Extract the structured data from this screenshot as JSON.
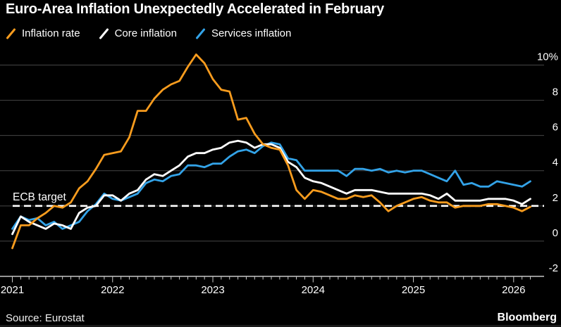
{
  "header": {
    "title": "Euro-Area Inflation Unexpectedly Accelerated in February"
  },
  "footer": {
    "source": "Source: Eurostat",
    "brand": "Bloomberg"
  },
  "chart_data": {
    "type": "line",
    "x_frequency": "monthly",
    "x_start": "2021-01",
    "x_end": "2026-03",
    "x_year_ticks": [
      "2021",
      "2022",
      "2023",
      "2024",
      "2025",
      "2026"
    ],
    "yticks": [
      10,
      8,
      6,
      4,
      2,
      0,
      -2
    ],
    "ytick_labels": [
      "10%",
      "8",
      "6",
      "4",
      "2",
      "0",
      "-2"
    ],
    "ylim": [
      -2,
      10
    ],
    "grid": true,
    "legend_position": "top-left",
    "background_color": "#000000",
    "grid_color": "#464646",
    "axis_color": "#c8c8c8",
    "text_color": "#ffffff",
    "target_line": {
      "label": "ECB target",
      "value": 2,
      "style": "dashed",
      "color": "#ffffff"
    },
    "series": [
      {
        "name": "Inflation rate",
        "color": "#F89C1E",
        "values": [
          -0.4,
          0.9,
          0.9,
          1.3,
          1.6,
          2.0,
          1.9,
          2.2,
          3.0,
          3.4,
          4.1,
          4.9,
          5.0,
          5.1,
          5.9,
          7.4,
          7.4,
          8.1,
          8.6,
          8.9,
          9.1,
          9.9,
          10.6,
          10.1,
          9.2,
          8.6,
          8.5,
          6.9,
          7.0,
          6.1,
          5.5,
          5.3,
          5.2,
          4.3,
          2.9,
          2.4,
          2.9,
          2.8,
          2.6,
          2.4,
          2.4,
          2.6,
          2.5,
          2.6,
          2.2,
          1.7,
          2.0,
          2.2,
          2.4,
          2.5,
          2.3,
          2.2,
          2.2,
          1.9,
          2.0,
          2.0,
          2.0,
          2.1,
          2.1,
          2.0,
          1.9,
          1.7,
          1.95
        ]
      },
      {
        "name": "Core inflation",
        "color": "#FFFFFF",
        "values": [
          0.4,
          1.4,
          1.1,
          0.9,
          0.7,
          1.0,
          0.9,
          0.7,
          1.6,
          1.9,
          2.0,
          2.6,
          2.6,
          2.3,
          2.7,
          2.9,
          3.5,
          3.8,
          3.7,
          4.0,
          4.3,
          4.8,
          5.0,
          5.0,
          5.2,
          5.3,
          5.6,
          5.7,
          5.6,
          5.3,
          5.5,
          5.5,
          5.3,
          4.5,
          4.2,
          3.6,
          3.4,
          3.3,
          3.1,
          2.9,
          2.7,
          2.9,
          2.9,
          2.9,
          2.8,
          2.7,
          2.7,
          2.7,
          2.7,
          2.7,
          2.6,
          2.4,
          2.7,
          2.3,
          2.3,
          2.3,
          2.3,
          2.4,
          2.4,
          2.4,
          2.3,
          2.1,
          2.4
        ]
      },
      {
        "name": "Services inflation",
        "color": "#33A3E8",
        "values": [
          0.7,
          1.4,
          1.2,
          1.3,
          0.9,
          1.1,
          0.7,
          0.9,
          1.1,
          1.7,
          2.1,
          2.7,
          2.4,
          2.3,
          2.5,
          2.7,
          3.3,
          3.5,
          3.4,
          3.7,
          3.8,
          4.3,
          4.3,
          4.2,
          4.4,
          4.4,
          4.8,
          5.1,
          5.2,
          5.0,
          5.4,
          5.6,
          5.5,
          4.7,
          4.6,
          4.0,
          4.0,
          4.0,
          4.0,
          4.0,
          3.7,
          4.1,
          4.1,
          4.0,
          4.1,
          3.9,
          4.0,
          3.9,
          4.0,
          4.0,
          3.8,
          3.6,
          3.4,
          4.0,
          3.2,
          3.3,
          3.1,
          3.1,
          3.4,
          3.3,
          3.2,
          3.1,
          3.4
        ]
      }
    ]
  }
}
